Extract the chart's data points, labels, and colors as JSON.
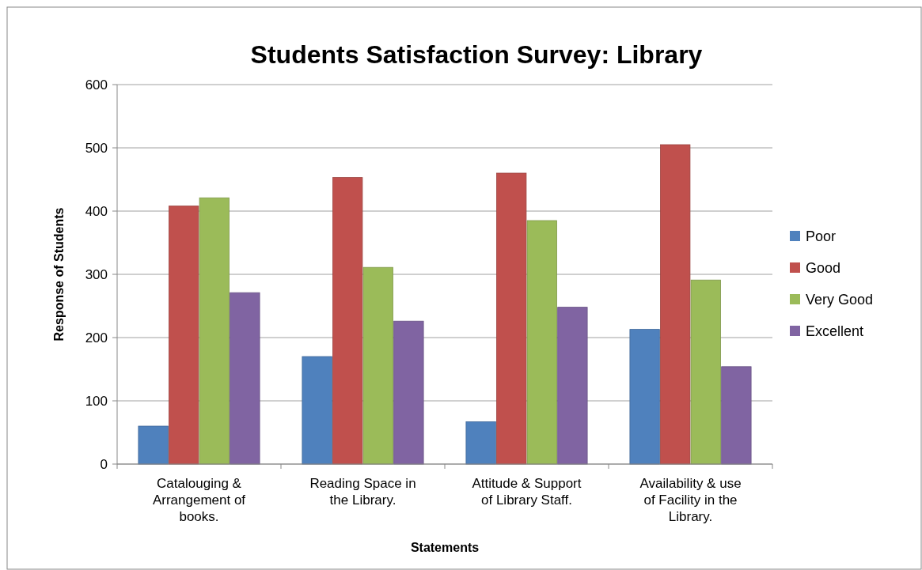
{
  "chart_data": {
    "type": "bar",
    "title": "Students Satisfaction Survey: Library",
    "xlabel": "Statements",
    "ylabel": "Response of Students",
    "categories": [
      "Catalouging & Arrangement of books.",
      "Reading Space in the Library.",
      "Attitude & Support of Library Staff.",
      "Availability & use of Facility in the Library."
    ],
    "series": [
      {
        "name": "Poor",
        "color": "#4f81bd",
        "values": [
          60,
          170,
          67,
          213
        ]
      },
      {
        "name": "Good",
        "color": "#c0504d",
        "values": [
          408,
          453,
          460,
          505
        ]
      },
      {
        "name": "Very Good",
        "color": "#9bbb59",
        "values": [
          421,
          311,
          385,
          291
        ]
      },
      {
        "name": "Excellent",
        "color": "#8064a2",
        "values": [
          271,
          226,
          248,
          154
        ]
      }
    ],
    "ylim": [
      0,
      600
    ],
    "yticks": [
      0,
      100,
      200,
      300,
      400,
      500,
      600
    ],
    "grid": "y",
    "legend": "right"
  }
}
